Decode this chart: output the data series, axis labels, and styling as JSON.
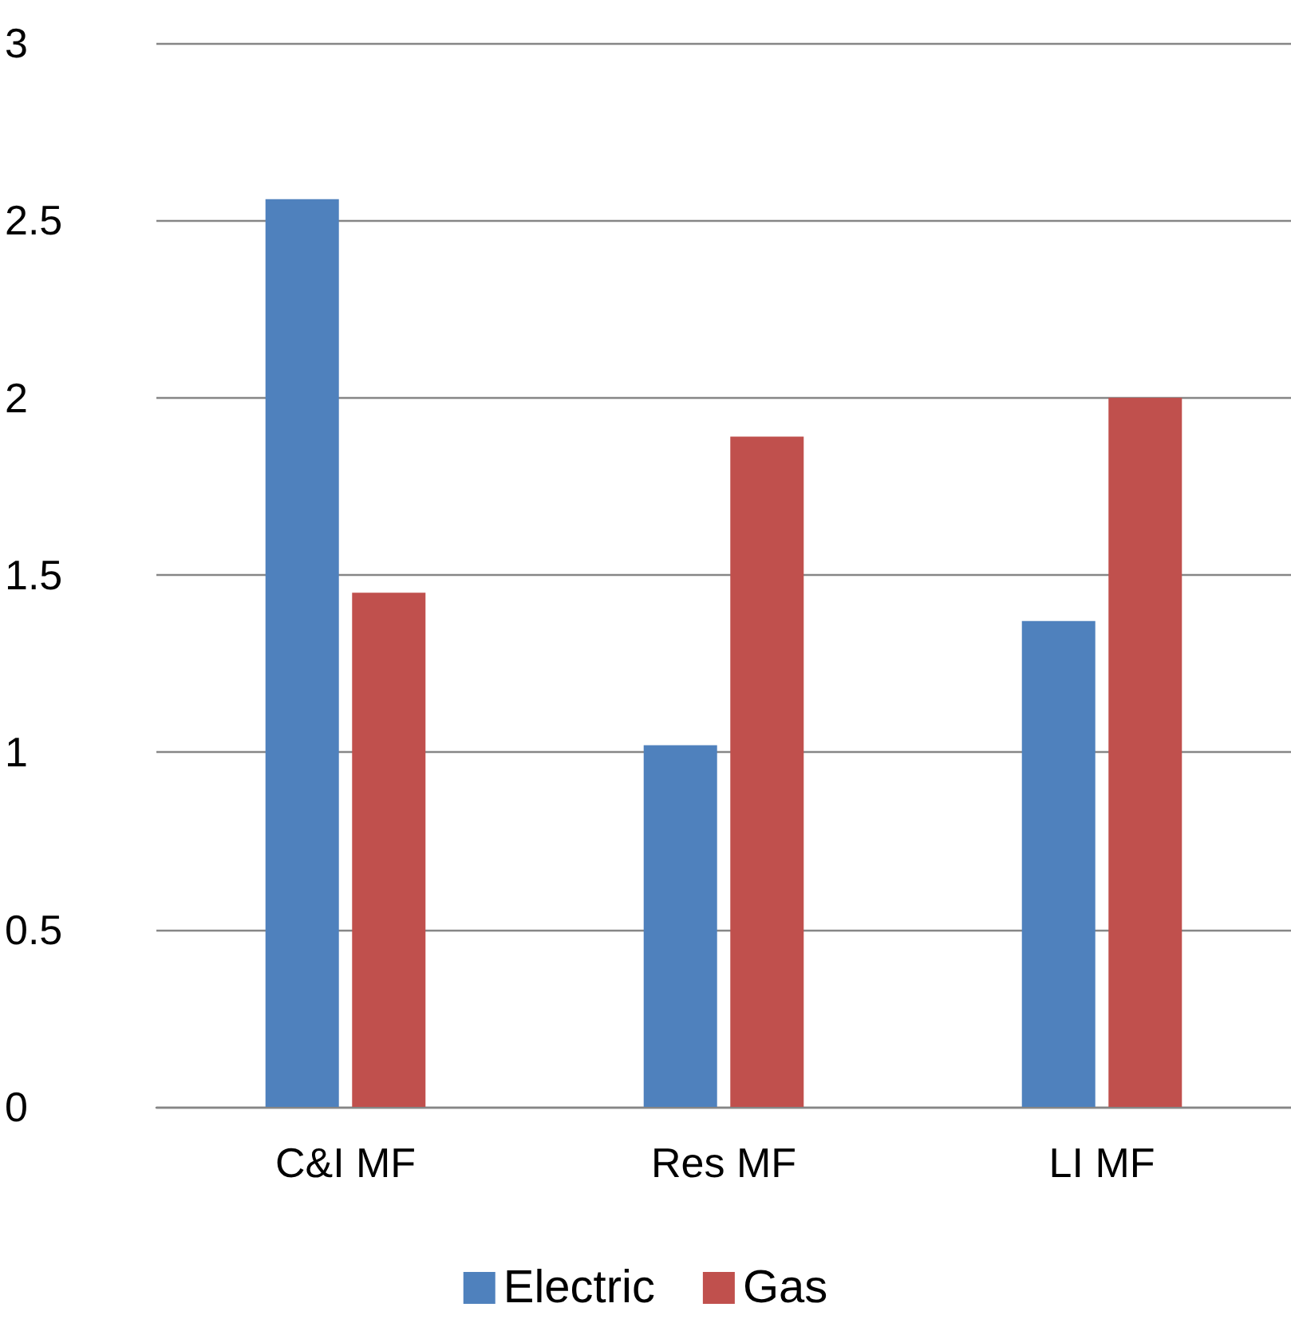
{
  "chart_data": {
    "type": "bar",
    "categories": [
      "C&I MF",
      "Res MF",
      "LI MF"
    ],
    "series": [
      {
        "name": "Electric",
        "color": "#4f81bd",
        "values": [
          2.56,
          1.02,
          1.37
        ]
      },
      {
        "name": "Gas",
        "color": "#c0504d",
        "values": [
          1.45,
          1.89,
          2.0
        ]
      }
    ],
    "ylim": [
      0,
      3
    ],
    "yticks": [
      0,
      0.5,
      1,
      1.5,
      2,
      2.5,
      3
    ],
    "grid": "y",
    "legend": "bottom"
  }
}
